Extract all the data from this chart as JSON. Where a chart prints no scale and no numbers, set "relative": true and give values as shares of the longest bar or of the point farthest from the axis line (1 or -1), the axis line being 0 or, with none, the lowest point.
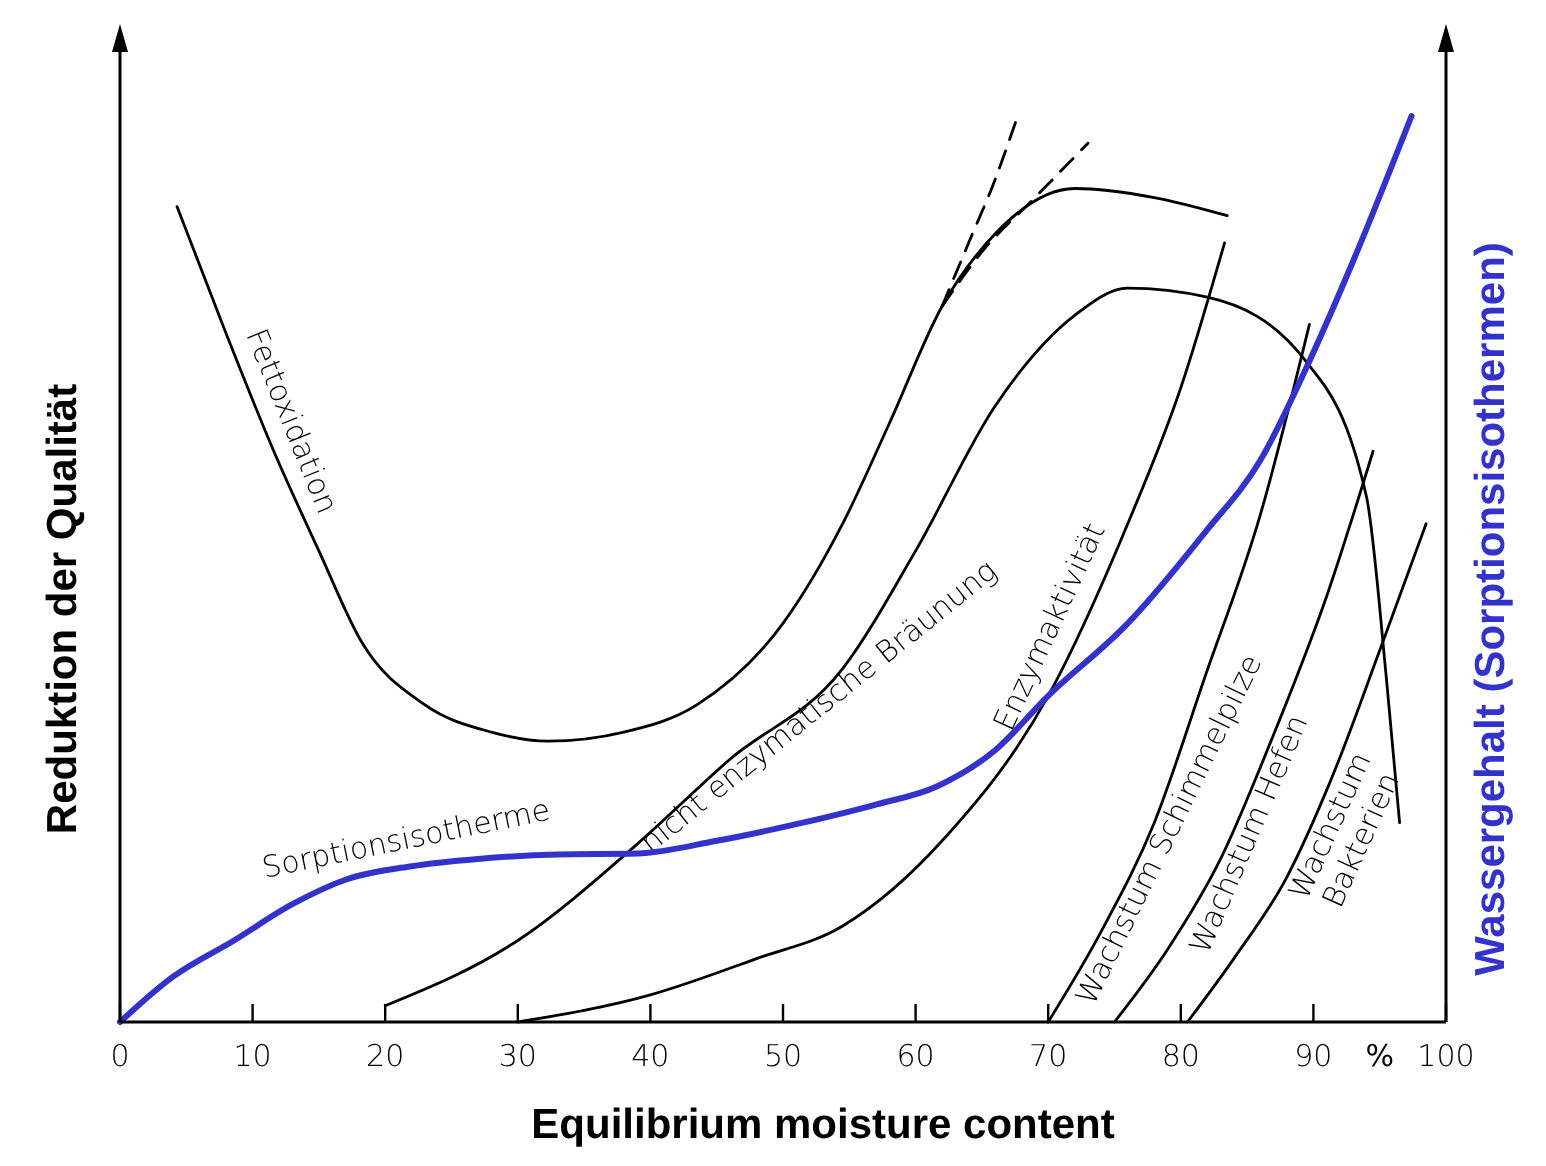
{
  "chart_data": {
    "type": "line",
    "relative": true,
    "xlabel": "Equilibrium moisture content",
    "ylabel": "Reduktion der Qualität",
    "y2label": "Wassergehalt  (Sorptionsisothermen)",
    "xlim": [
      0,
      100
    ],
    "xticks": [
      0,
      10,
      20,
      30,
      40,
      50,
      60,
      70,
      80,
      90,
      100
    ],
    "annotations": [
      "%"
    ],
    "grid": false,
    "marker": "none",
    "series": [
      {
        "name": "Fettoxidation",
        "color": "#000000",
        "x": [
          4.3,
          8,
          11.6,
          15,
          18.2,
          23,
          28,
          32.3,
          38,
          43.5,
          50,
          54.5,
          58,
          62,
          66,
          72,
          78,
          83.5
        ],
        "values": [
          0.9,
          0.76,
          0.63,
          0.52,
          0.42,
          0.35,
          0.32,
          0.31,
          0.32,
          0.35,
          0.44,
          0.55,
          0.66,
          0.79,
          0.87,
          0.92,
          0.91,
          0.89
        ]
      },
      {
        "name": "nicht enzymatische Bräunung",
        "color": "#000000",
        "x": [
          20,
          30,
          38.9,
          46,
          54.5,
          60,
          66,
          72,
          76,
          82,
          89.4,
          94,
          95.5,
          96.5
        ],
        "values": [
          0.018,
          0.09,
          0.195,
          0.29,
          0.39,
          0.52,
          0.68,
          0.78,
          0.81,
          0.8,
          0.73,
          0.58,
          0.38,
          0.22
        ]
      },
      {
        "name": "Enzymaktivität",
        "color": "#000000",
        "x": [
          30,
          40,
          48,
          54.5,
          62,
          70,
          76,
          80,
          83.3
        ],
        "values": [
          0,
          0.03,
          0.07,
          0.106,
          0.2,
          0.36,
          0.55,
          0.7,
          0.86
        ]
      },
      {
        "name": "Wachstum Schimmelpilze",
        "color": "#000000",
        "x": [
          70,
          74,
          78,
          81.8,
          86,
          89.7
        ],
        "values": [
          0,
          0.1,
          0.22,
          0.38,
          0.56,
          0.77
        ]
      },
      {
        "name": "Wachstum Hefen",
        "color": "#000000",
        "x": [
          75,
          79,
          83,
          86.8,
          91,
          94.5
        ],
        "values": [
          0,
          0.08,
          0.18,
          0.31,
          0.47,
          0.63
        ]
      },
      {
        "name": "Wachstum Bakterien",
        "color": "#000000",
        "x": [
          80.5,
          84,
          88,
          91.4,
          95,
          98.5
        ],
        "values": [
          0,
          0.07,
          0.16,
          0.27,
          0.41,
          0.55
        ]
      },
      {
        "name": "Sorptionsisotherme",
        "color": "#3333cc",
        "axis": "y2",
        "x": [
          0,
          4,
          8.6,
          13,
          17,
          22,
          27,
          33,
          39,
          45,
          51.5,
          57,
          61.6,
          66,
          70,
          76,
          81.8,
          86,
          89.4,
          93,
          97.4
        ],
        "values": [
          0,
          0.05,
          0.09,
          0.13,
          0.157,
          0.172,
          0.18,
          0.185,
          0.186,
          0.2,
          0.22,
          0.24,
          0.26,
          0.3,
          0.36,
          0.44,
          0.54,
          0.62,
          0.72,
          0.84,
          1.0
        ]
      },
      {
        "color": "#000000",
        "line_style": "dashed",
        "x": [
          62,
          64,
          66,
          67.7
        ],
        "values": [
          0.79,
          0.86,
          0.93,
          1.0
        ]
      },
      {
        "color": "#000000",
        "line_style": "dashed",
        "x": [
          62,
          65,
          69,
          73
        ],
        "values": [
          0.79,
          0.85,
          0.91,
          0.97
        ]
      }
    ]
  }
}
